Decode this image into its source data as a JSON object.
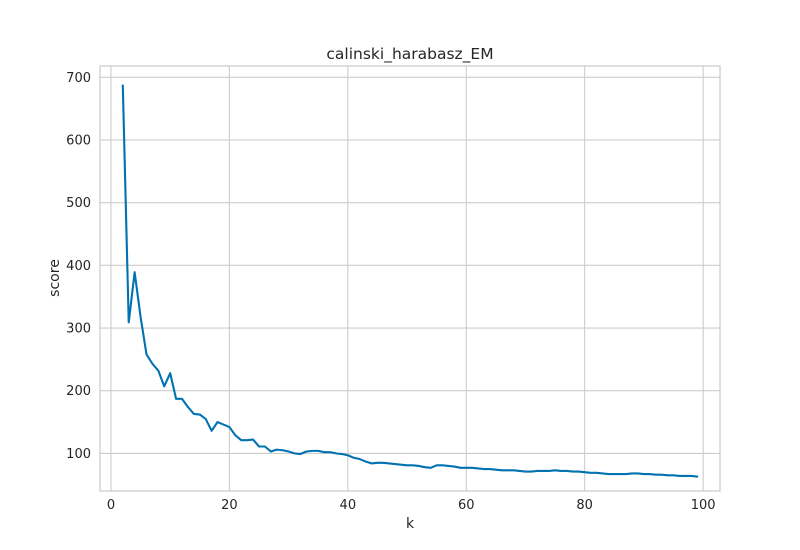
{
  "chart_data": {
    "type": "line",
    "title": "calinski_harabasz_EM",
    "xlabel": "k",
    "ylabel": "score",
    "xlim": [
      -1.85,
      102.85
    ],
    "ylim": [
      40,
      718
    ],
    "xticks": [
      0,
      20,
      40,
      60,
      80,
      100
    ],
    "yticks": [
      100,
      200,
      300,
      400,
      500,
      600,
      700
    ],
    "grid": true,
    "series_color": "#0072b2",
    "grid_color": "#cccccc",
    "series": [
      {
        "x": [
          2,
          3,
          4,
          5,
          6,
          7,
          8,
          9,
          10,
          11,
          12,
          13,
          14,
          15,
          16,
          17,
          18,
          19,
          20,
          21,
          22,
          23,
          24,
          25,
          26,
          27,
          28,
          29,
          30,
          31,
          32,
          33,
          34,
          35,
          36,
          37,
          38,
          39,
          40,
          41,
          42,
          43,
          44,
          45,
          46,
          47,
          48,
          49,
          50,
          51,
          52,
          53,
          54,
          55,
          56,
          57,
          58,
          59,
          60,
          61,
          62,
          63,
          64,
          65,
          66,
          67,
          68,
          69,
          70,
          71,
          72,
          73,
          74,
          75,
          76,
          77,
          78,
          79,
          80,
          81,
          82,
          83,
          84,
          85,
          86,
          87,
          88,
          89,
          90,
          91,
          92,
          93,
          94,
          95,
          96,
          97,
          98,
          99
        ],
        "y": [
          687,
          309,
          389,
          318,
          258,
          243,
          232,
          207,
          228,
          187,
          187,
          174,
          163,
          162,
          155,
          136,
          150,
          146,
          142,
          129,
          121,
          121,
          122,
          111,
          111,
          103,
          106,
          105,
          103,
          100,
          99,
          103,
          104,
          104,
          102,
          102,
          100,
          99,
          97,
          93,
          91,
          87,
          84,
          85,
          85,
          84,
          83,
          82,
          81,
          81,
          80,
          78,
          77,
          81,
          81,
          80,
          79,
          77,
          77,
          77,
          76,
          75,
          75,
          74,
          73,
          73,
          73,
          72,
          71,
          71,
          72,
          72,
          72,
          73,
          72,
          72,
          71,
          71,
          70,
          69,
          69,
          68,
          67,
          67,
          67,
          67,
          68,
          68,
          67,
          67,
          66,
          66,
          65,
          65,
          64,
          64,
          64,
          63
        ]
      }
    ]
  }
}
